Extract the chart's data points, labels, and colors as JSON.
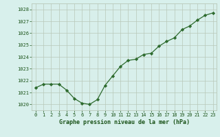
{
  "x": [
    0,
    1,
    2,
    3,
    4,
    5,
    6,
    7,
    8,
    9,
    10,
    11,
    12,
    13,
    14,
    15,
    16,
    17,
    18,
    19,
    20,
    21,
    22,
    23
  ],
  "y": [
    1021.4,
    1021.7,
    1021.7,
    1021.7,
    1021.2,
    1020.5,
    1020.1,
    1020.0,
    1020.4,
    1021.6,
    1022.4,
    1023.2,
    1023.7,
    1023.8,
    1024.2,
    1024.3,
    1024.9,
    1025.3,
    1025.6,
    1026.3,
    1026.6,
    1027.1,
    1027.5,
    1027.7
  ],
  "ylim": [
    1019.5,
    1028.5
  ],
  "yticks": [
    1020,
    1021,
    1022,
    1023,
    1024,
    1025,
    1026,
    1027,
    1028
  ],
  "xticks": [
    0,
    1,
    2,
    3,
    4,
    5,
    6,
    7,
    8,
    9,
    10,
    11,
    12,
    13,
    14,
    15,
    16,
    17,
    18,
    19,
    20,
    21,
    22,
    23
  ],
  "line_color": "#2d6a2d",
  "marker_color": "#2d6a2d",
  "bg_color": "#d8f0ec",
  "plot_bg_color": "#d8efeb",
  "grid_color": "#b8c8b8",
  "xlabel": "Graphe pression niveau de la mer (hPa)",
  "xlabel_color": "#1a5218",
  "tick_color": "#1a5218",
  "tick_fontsize": 5.0,
  "xlabel_fontsize": 6.0,
  "linewidth": 0.9,
  "markersize": 2.2
}
